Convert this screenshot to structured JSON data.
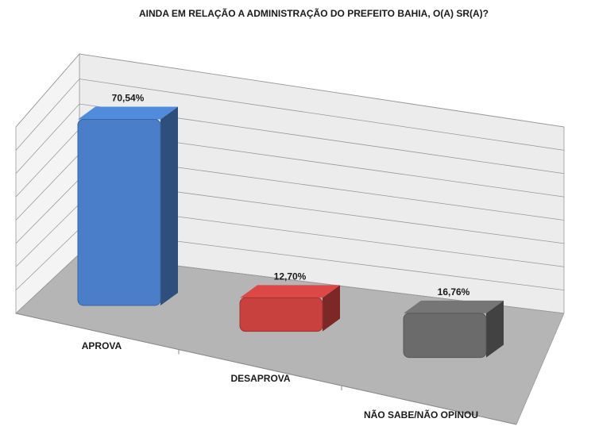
{
  "chart_data": {
    "type": "bar3d",
    "title": "AINDA EM RELAÇÃO A ADMINISTRAÇÃO DO PREFEITO BAHIA, O(A) SR(A)?",
    "categories": [
      "APROVA",
      "DESAPROVA",
      "NÃO SABE/NÃO OPINOU"
    ],
    "values": [
      70.54,
      12.7,
      16.76
    ],
    "value_labels": [
      "70,54%",
      "12,70%",
      "16,76%"
    ],
    "colors": [
      "#4a7ec8",
      "#c8413f",
      "#6b6b6b"
    ],
    "ylim": [
      0,
      80
    ],
    "yticks": [
      0,
      10,
      20,
      30,
      40,
      50,
      60,
      70,
      80
    ],
    "grid": true
  }
}
